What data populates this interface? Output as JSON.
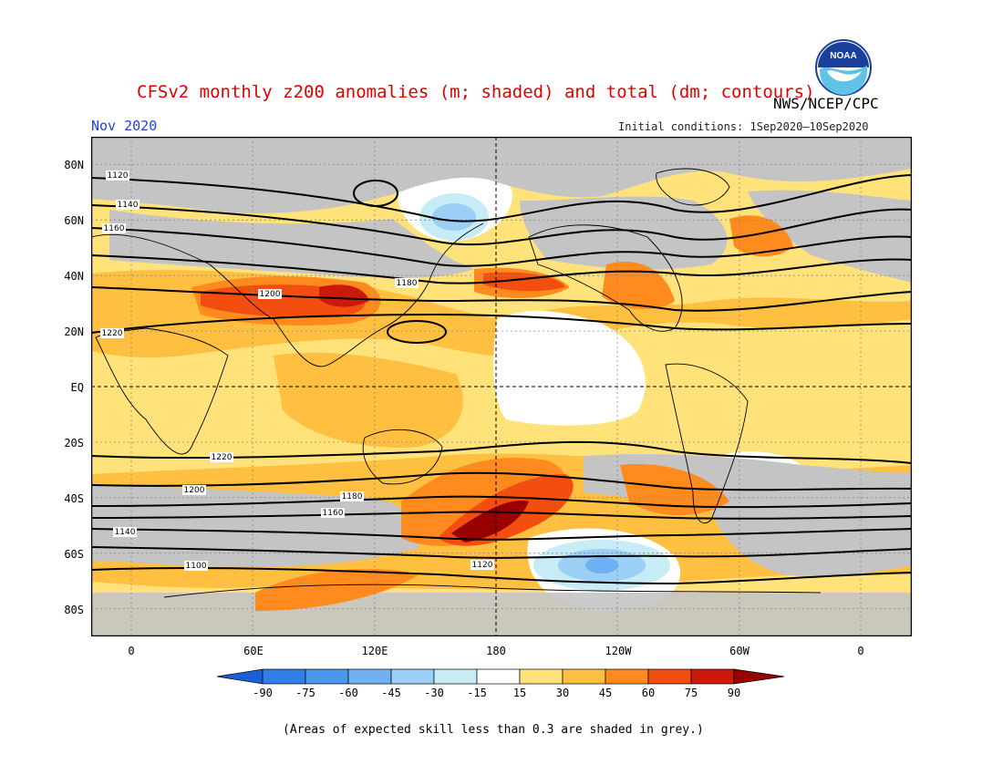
{
  "title": "CFSv2 monthly z200 anomalies (m; shaded) and total (dm; contours)",
  "subtitle": "Nov 2020",
  "agency": "NWS/NCEP/CPC",
  "initial_conditions": "Initial conditions: 1Sep2020–10Sep2020",
  "latitude_labels": [
    "80N",
    "60N",
    "40N",
    "20N",
    "EQ",
    "20S",
    "40S",
    "60S",
    "80S"
  ],
  "longitude_labels": [
    "0",
    "60E",
    "120E",
    "180",
    "120W",
    "60W",
    "0"
  ],
  "colorbar": {
    "labels": [
      "-90",
      "-75",
      "-60",
      "-45",
      "-30",
      "-15",
      "15",
      "30",
      "45",
      "60",
      "75",
      "90"
    ],
    "colors": [
      "#1a5fd6",
      "#2f7fe6",
      "#4a97ee",
      "#6fb1f2",
      "#9ccff5",
      "#c7ecf6",
      "#ffffff",
      "#ffe27a",
      "#ffbf40",
      "#ff8a1e",
      "#f24e10",
      "#cc1a0a",
      "#990000"
    ]
  },
  "grey_note": "(Areas of expected skill less than 0.3 are shaded in grey.)",
  "contour_labels": [
    "1120",
    "1140",
    "1160",
    "1180",
    "1200",
    "1220",
    "1100"
  ],
  "logo_text": "NOAA",
  "colors": {
    "skill_grey": "#c4c4c4",
    "title_red": "#e00000",
    "subtitle_blue": "#2244dd"
  }
}
